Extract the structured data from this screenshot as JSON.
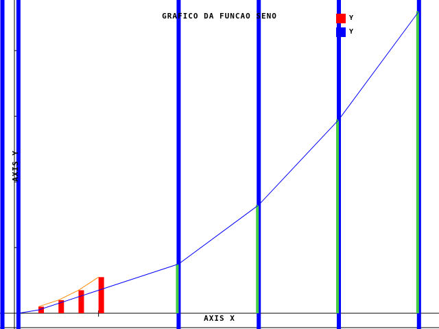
{
  "chart_data": {
    "type": "bar",
    "title": "GRAFICO DA FUNCAO SENO",
    "xlabel": "AXIS X",
    "ylabel": "AXIS Y",
    "colors": {
      "title": "#44cc44",
      "xlabel": "#ff0000",
      "ylabel": "#000000",
      "red_series": "#ff0000",
      "blue_series": "#0000ff",
      "green_series": "#44cc44",
      "orange_line": "#ff8800"
    },
    "legend": {
      "position": "top-right",
      "entries": [
        {
          "label": "Y",
          "color": "#ff0000"
        },
        {
          "label": "Y",
          "color": "#0000ff"
        }
      ]
    },
    "series": [
      {
        "name": "Y",
        "kind": "bar",
        "color": "#ff0000",
        "x": [
          0.25,
          0.5,
          0.75,
          1.0
        ],
        "values": [
          0.1,
          0.2,
          0.35,
          0.55
        ]
      },
      {
        "name": "Y",
        "kind": "line",
        "color": "#0000ff",
        "x": [
          0.0,
          0.25,
          1.0,
          2.0,
          3.0,
          4.0,
          5.0
        ],
        "values": [
          0.0,
          0.05,
          0.35,
          0.75,
          1.65,
          2.95,
          4.6
        ]
      },
      {
        "kind": "bar",
        "color": "#44cc44",
        "x": [
          2.0,
          3.0,
          4.0,
          5.0
        ],
        "values": [
          0.75,
          1.65,
          2.95,
          4.6
        ]
      },
      {
        "kind": "line",
        "color": "#ff8800",
        "x": [
          0.25,
          0.5,
          0.75,
          1.0
        ],
        "values": [
          0.1,
          0.2,
          0.35,
          0.55
        ]
      }
    ],
    "vertical_markers": {
      "color": "#0000ff",
      "x": [
        -0.2,
        0.0,
        2.0,
        3.0,
        4.0,
        5.0
      ]
    },
    "xlim": [
      -0.23,
      5.25
    ],
    "ylim": [
      0,
      4.75
    ],
    "y_ticks": [
      1,
      2,
      3,
      4
    ],
    "x_ticks": [
      0,
      1,
      2,
      3,
      4,
      5
    ],
    "grid": false
  }
}
